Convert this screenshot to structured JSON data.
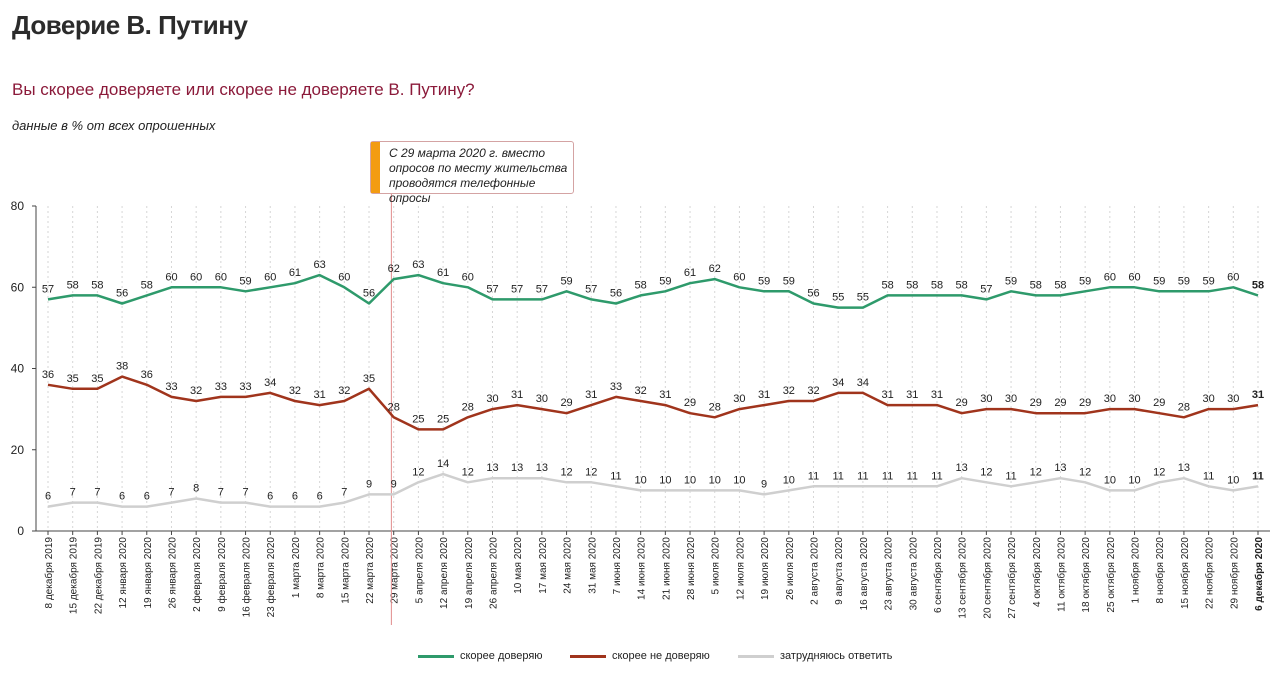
{
  "header": {
    "title": "Доверие В. Путину",
    "subtitle": "Вы скорее доверяете или скорее не доверяете В. Путину?",
    "note": "данные в % от всех опрошенных"
  },
  "annotation": {
    "text": "С 29 марта 2020 г. вместо\nопросов по месту жительства\nпроводятся телефонные опросы"
  },
  "colors": {
    "trust": "#2e9a6b",
    "distrust": "#a0341c",
    "hard": "#cfcfcf",
    "marker_line": "#e08b8b",
    "annotation_accent": "#f39c12"
  },
  "chart_data": {
    "type": "line",
    "categories": [
      "8 декабря 2019",
      "15 декабря 2019",
      "22 декабря 2019",
      "12 января 2020",
      "19 января 2020",
      "26 января 2020",
      "2 февраля 2020",
      "9 февраля 2020",
      "16 февраля 2020",
      "23 февраля 2020",
      "1 марта 2020",
      "8 марта 2020",
      "15 марта 2020",
      "22 марта 2020",
      "29 марта 2020",
      "5 апреля 2020",
      "12 апреля 2020",
      "19 апреля 2020",
      "26 апреля 2020",
      "10 мая 2020",
      "17 мая 2020",
      "24 мая 2020",
      "31 мая 2020",
      "7 июня 2020",
      "14 июня 2020",
      "21 июня 2020",
      "28 июня 2020",
      "5 июля 2020",
      "12 июля 2020",
      "19 июля 2020",
      "26 июля 2020",
      "2 августа 2020",
      "9 августа 2020",
      "16 августа 2020",
      "23 августа 2020",
      "30 августа 2020",
      "6 сентября 2020",
      "13 сентября 2020",
      "20 сентября 2020",
      "27 сентября 2020",
      "4 октября 2020",
      "11 октября 2020",
      "18 октября 2020",
      "25 октября 2020",
      "1 ноября 2020",
      "8 ноября 2020",
      "15 ноября 2020",
      "22 ноября 2020",
      "29 ноября 2020",
      "6 декабря 2020"
    ],
    "series": [
      {
        "name": "скорее доверяю",
        "key": "trust",
        "values": [
          57,
          58,
          58,
          56,
          58,
          60,
          60,
          60,
          59,
          60,
          61,
          63,
          60,
          56,
          62,
          63,
          61,
          60,
          57,
          57,
          57,
          59,
          57,
          56,
          58,
          59,
          61,
          62,
          60,
          59,
          59,
          56,
          55,
          55,
          58,
          58,
          58,
          58,
          57,
          59,
          58,
          58,
          59,
          60,
          60,
          59,
          59,
          59,
          60,
          58
        ]
      },
      {
        "name": "скорее не доверяю",
        "key": "distrust",
        "values": [
          36,
          35,
          35,
          38,
          36,
          33,
          32,
          33,
          33,
          34,
          32,
          31,
          32,
          35,
          28,
          25,
          25,
          28,
          30,
          31,
          30,
          29,
          31,
          33,
          32,
          31,
          29,
          28,
          30,
          31,
          32,
          32,
          34,
          34,
          31,
          31,
          31,
          29,
          30,
          30,
          29,
          29,
          29,
          30,
          30,
          29,
          28,
          30,
          30,
          31
        ]
      },
      {
        "name": "затрудняюсь ответить",
        "key": "hard",
        "values": [
          6,
          7,
          7,
          6,
          6,
          7,
          8,
          7,
          7,
          6,
          6,
          6,
          7,
          9,
          9,
          12,
          14,
          12,
          13,
          13,
          13,
          12,
          12,
          11,
          10,
          10,
          10,
          10,
          10,
          9,
          10,
          11,
          11,
          11,
          11,
          11,
          11,
          13,
          12,
          11,
          12,
          13,
          12,
          10,
          10,
          12,
          13,
          11,
          10,
          11
        ]
      }
    ],
    "y_ticks": [
      "0",
      "20",
      "40",
      "60",
      "80"
    ],
    "ylim": [
      0,
      80
    ],
    "grid": "vertical dashed",
    "marker_category": "29 марта 2020",
    "legend_position": "bottom"
  }
}
